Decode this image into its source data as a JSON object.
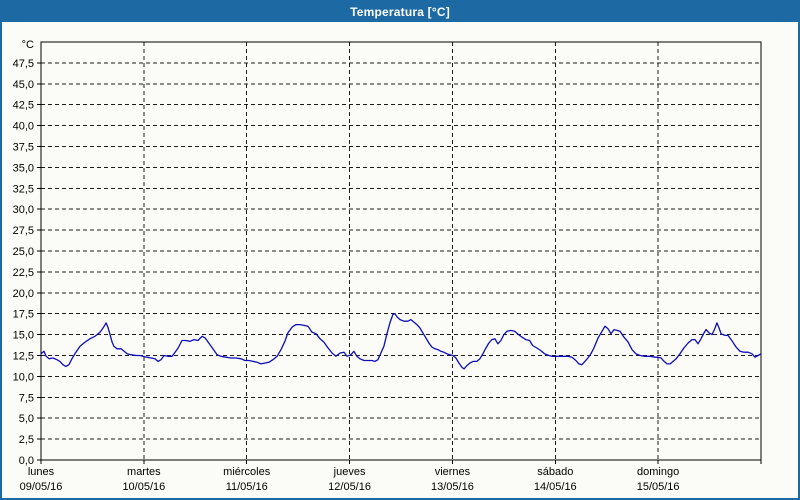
{
  "window": {
    "title": "Temperatura [°C]",
    "titlebar_color": "#1c69a4",
    "background_color": "#fbfcf7"
  },
  "chart_data": {
    "type": "line",
    "title": "Temperatura [°C]",
    "unit_label": "°C",
    "series_name": "Temperatura",
    "series_color": "#0d0db8",
    "grid": "dashed",
    "legend": "none",
    "ylim": [
      0,
      50
    ],
    "y_tick_step": 2.5,
    "y_tick_labels": [
      "0,0",
      "2,5",
      "5,0",
      "7,5",
      "10,0",
      "12,5",
      "15,0",
      "17,5",
      "20,0",
      "22,5",
      "25,0",
      "27,5",
      "30,0",
      "32,5",
      "35,0",
      "37,5",
      "40,0",
      "42,5",
      "45,0",
      "47,5"
    ],
    "x_range_hours": [
      0,
      168
    ],
    "x_days": [
      {
        "name": "lunes",
        "date": "09/05/16"
      },
      {
        "name": "martes",
        "date": "10/05/16"
      },
      {
        "name": "miércoles",
        "date": "11/05/16"
      },
      {
        "name": "jueves",
        "date": "12/05/16"
      },
      {
        "name": "viernes",
        "date": "13/05/16"
      },
      {
        "name": "sábado",
        "date": "14/05/16"
      },
      {
        "name": "domingo",
        "date": "15/05/16"
      }
    ],
    "points": [
      [
        0,
        12.7
      ],
      [
        0.7,
        13.0
      ],
      [
        1.2,
        12.4
      ],
      [
        1.9,
        12.1
      ],
      [
        2.8,
        12.2
      ],
      [
        3.7,
        12.0
      ],
      [
        4.4,
        11.8
      ],
      [
        5.1,
        11.4
      ],
      [
        5.8,
        11.2
      ],
      [
        6.5,
        11.4
      ],
      [
        7.2,
        12.1
      ],
      [
        7.9,
        12.7
      ],
      [
        9.1,
        13.6
      ],
      [
        10.3,
        14.1
      ],
      [
        11.4,
        14.5
      ],
      [
        12.6,
        14.8
      ],
      [
        13.8,
        15.3
      ],
      [
        14.5,
        15.8
      ],
      [
        15.2,
        16.4
      ],
      [
        15.6,
        15.9
      ],
      [
        16.1,
        15.0
      ],
      [
        16.6,
        14.1
      ],
      [
        17.0,
        13.6
      ],
      [
        17.7,
        13.3
      ],
      [
        18.7,
        13.3
      ],
      [
        19.4,
        13.0
      ],
      [
        20.1,
        12.7
      ],
      [
        21.0,
        12.6
      ],
      [
        22.2,
        12.5
      ],
      [
        23.1,
        12.5
      ],
      [
        23.8,
        12.4
      ],
      [
        24.7,
        12.3
      ],
      [
        25.7,
        12.2
      ],
      [
        26.6,
        12.1
      ],
      [
        27.3,
        11.8
      ],
      [
        28.0,
        12.0
      ],
      [
        28.7,
        12.5
      ],
      [
        29.6,
        12.4
      ],
      [
        30.6,
        12.4
      ],
      [
        31.3,
        12.9
      ],
      [
        32.0,
        13.4
      ],
      [
        32.9,
        14.3
      ],
      [
        33.8,
        14.3
      ],
      [
        34.8,
        14.2
      ],
      [
        35.7,
        14.4
      ],
      [
        36.6,
        14.3
      ],
      [
        37.6,
        14.8
      ],
      [
        38.3,
        14.6
      ],
      [
        39.0,
        14.1
      ],
      [
        39.7,
        13.6
      ],
      [
        40.4,
        13.1
      ],
      [
        41.1,
        12.6
      ],
      [
        42.0,
        12.4
      ],
      [
        43.2,
        12.3
      ],
      [
        44.3,
        12.2
      ],
      [
        45.5,
        12.2
      ],
      [
        46.7,
        12.1
      ],
      [
        47.6,
        11.9
      ],
      [
        48.5,
        11.9
      ],
      [
        49.5,
        11.8
      ],
      [
        50.4,
        11.7
      ],
      [
        51.3,
        11.5
      ],
      [
        52.3,
        11.6
      ],
      [
        53.2,
        11.7
      ],
      [
        54.1,
        12.0
      ],
      [
        55.1,
        12.4
      ],
      [
        56.0,
        13.2
      ],
      [
        56.9,
        14.2
      ],
      [
        57.6,
        15.2
      ],
      [
        58.6,
        15.9
      ],
      [
        59.5,
        16.2
      ],
      [
        60.4,
        16.2
      ],
      [
        61.4,
        16.1
      ],
      [
        62.3,
        16.0
      ],
      [
        63.2,
        15.3
      ],
      [
        64.2,
        15.1
      ],
      [
        65.1,
        14.5
      ],
      [
        66.0,
        14.1
      ],
      [
        67.0,
        13.4
      ],
      [
        67.9,
        12.8
      ],
      [
        68.8,
        12.4
      ],
      [
        69.8,
        12.8
      ],
      [
        70.7,
        12.9
      ],
      [
        71.4,
        12.4
      ],
      [
        72.3,
        12.6
      ],
      [
        73.0,
        13.0
      ],
      [
        73.7,
        12.4
      ],
      [
        74.4,
        12.1
      ],
      [
        75.4,
        11.9
      ],
      [
        76.3,
        11.9
      ],
      [
        77.2,
        11.9
      ],
      [
        77.9,
        11.8
      ],
      [
        78.6,
        12.0
      ],
      [
        79.3,
        12.8
      ],
      [
        80.0,
        13.6
      ],
      [
        80.7,
        15.1
      ],
      [
        81.4,
        16.4
      ],
      [
        82.1,
        17.4
      ],
      [
        82.6,
        17.5
      ],
      [
        83.1,
        17.1
      ],
      [
        83.8,
        16.8
      ],
      [
        84.7,
        16.6
      ],
      [
        85.6,
        16.6
      ],
      [
        86.3,
        16.8
      ],
      [
        87.0,
        16.5
      ],
      [
        87.7,
        16.2
      ],
      [
        88.4,
        15.8
      ],
      [
        89.1,
        15.2
      ],
      [
        89.8,
        14.6
      ],
      [
        90.5,
        14.0
      ],
      [
        91.2,
        13.5
      ],
      [
        91.9,
        13.3
      ],
      [
        92.6,
        13.2
      ],
      [
        93.3,
        13.0
      ],
      [
        94.0,
        12.9
      ],
      [
        94.7,
        12.7
      ],
      [
        95.4,
        12.6
      ],
      [
        96.1,
        12.5
      ],
      [
        96.8,
        12.2
      ],
      [
        97.5,
        11.6
      ],
      [
        98.2,
        11.1
      ],
      [
        98.7,
        10.9
      ],
      [
        99.4,
        11.3
      ],
      [
        100.1,
        11.6
      ],
      [
        100.8,
        11.8
      ],
      [
        101.7,
        11.8
      ],
      [
        102.4,
        12.1
      ],
      [
        103.1,
        12.7
      ],
      [
        103.8,
        13.4
      ],
      [
        104.5,
        14.0
      ],
      [
        105.2,
        14.4
      ],
      [
        105.9,
        14.5
      ],
      [
        106.6,
        13.9
      ],
      [
        107.3,
        14.3
      ],
      [
        108.0,
        15.0
      ],
      [
        108.7,
        15.4
      ],
      [
        109.6,
        15.5
      ],
      [
        110.5,
        15.4
      ],
      [
        111.2,
        15.1
      ],
      [
        112.2,
        14.7
      ],
      [
        113.1,
        14.4
      ],
      [
        114.0,
        14.3
      ],
      [
        114.7,
        13.7
      ],
      [
        115.7,
        13.4
      ],
      [
        116.6,
        13.1
      ],
      [
        117.5,
        12.7
      ],
      [
        118.5,
        12.5
      ],
      [
        119.2,
        12.4
      ],
      [
        120.1,
        12.4
      ],
      [
        121.1,
        12.4
      ],
      [
        122.0,
        12.4
      ],
      [
        122.9,
        12.4
      ],
      [
        123.9,
        12.3
      ],
      [
        124.8,
        11.9
      ],
      [
        125.5,
        11.5
      ],
      [
        126.2,
        11.4
      ],
      [
        126.9,
        11.8
      ],
      [
        127.6,
        12.2
      ],
      [
        128.3,
        12.7
      ],
      [
        129.0,
        13.4
      ],
      [
        130.0,
        14.6
      ],
      [
        130.9,
        15.4
      ],
      [
        131.6,
        16.0
      ],
      [
        132.3,
        15.7
      ],
      [
        133.0,
        15.1
      ],
      [
        133.7,
        15.6
      ],
      [
        134.4,
        15.5
      ],
      [
        135.1,
        15.4
      ],
      [
        136.0,
        14.7
      ],
      [
        137.0,
        14.1
      ],
      [
        137.9,
        13.2
      ],
      [
        138.8,
        12.7
      ],
      [
        139.8,
        12.5
      ],
      [
        140.9,
        12.4
      ],
      [
        142.1,
        12.4
      ],
      [
        143.3,
        12.3
      ],
      [
        144.0,
        12.3
      ],
      [
        144.7,
        12.2
      ],
      [
        145.4,
        11.8
      ],
      [
        146.1,
        11.5
      ],
      [
        146.8,
        11.5
      ],
      [
        147.5,
        11.8
      ],
      [
        148.2,
        12.1
      ],
      [
        149.1,
        12.7
      ],
      [
        150.0,
        13.4
      ],
      [
        151.0,
        14.0
      ],
      [
        151.9,
        14.4
      ],
      [
        152.6,
        14.4
      ],
      [
        153.3,
        13.9
      ],
      [
        154.0,
        14.5
      ],
      [
        154.7,
        15.2
      ],
      [
        155.2,
        15.6
      ],
      [
        155.9,
        15.2
      ],
      [
        156.6,
        15.0
      ],
      [
        157.3,
        15.8
      ],
      [
        157.7,
        16.4
      ],
      [
        158.2,
        15.8
      ],
      [
        158.7,
        15.1
      ],
      [
        159.6,
        14.9
      ],
      [
        160.3,
        14.9
      ],
      [
        161.3,
        14.2
      ],
      [
        162.2,
        13.5
      ],
      [
        163.1,
        13.0
      ],
      [
        164.0,
        12.9
      ],
      [
        165.0,
        12.9
      ],
      [
        165.9,
        12.7
      ],
      [
        166.6,
        12.3
      ],
      [
        167.3,
        12.5
      ],
      [
        168.0,
        12.7
      ]
    ]
  }
}
